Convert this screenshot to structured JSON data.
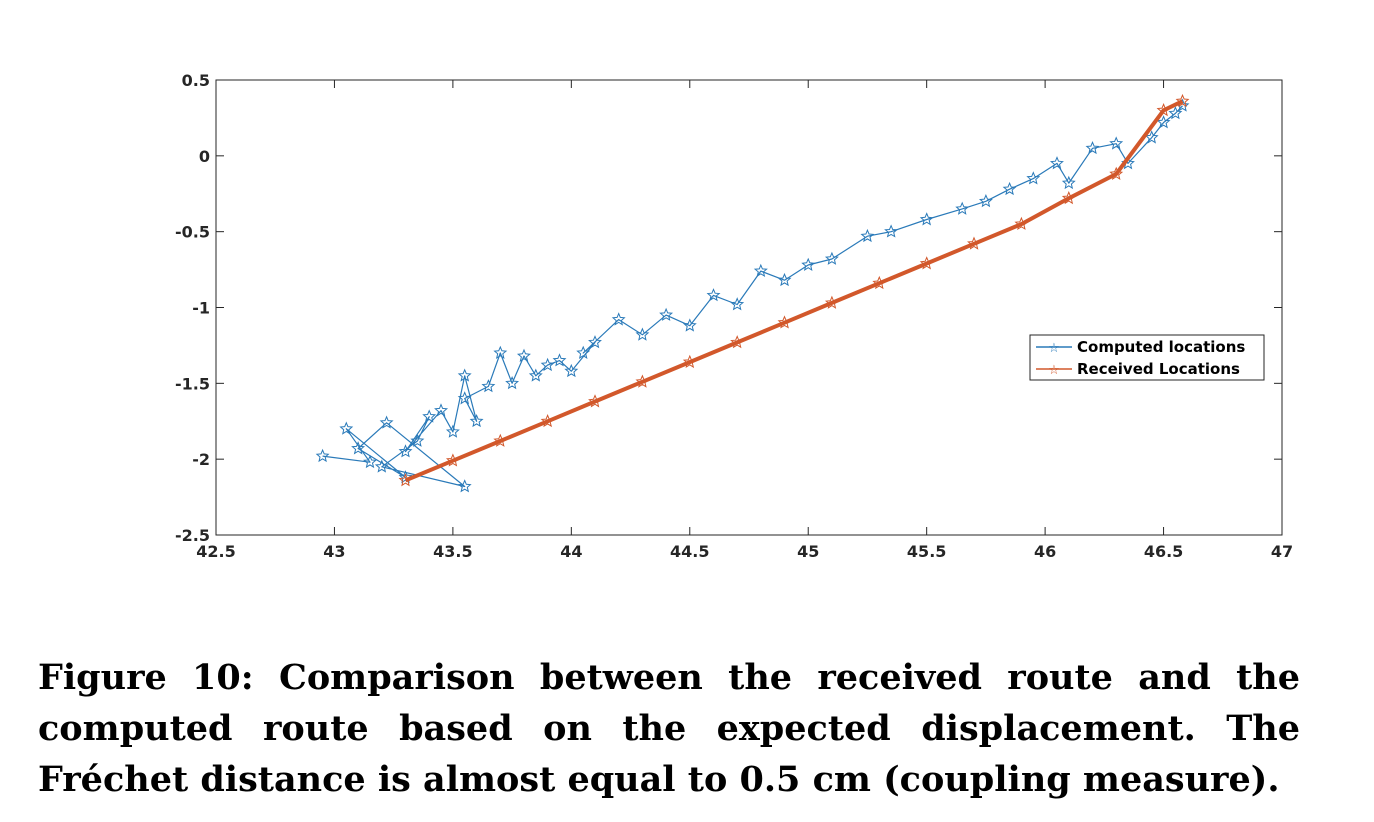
{
  "chart_data": {
    "type": "line",
    "title": "",
    "xlabel": "",
    "ylabel": "",
    "xlim": [
      42.5,
      47
    ],
    "ylim": [
      -2.5,
      0.5
    ],
    "x_ticks": [
      "42.5",
      "43",
      "43.5",
      "44",
      "44.5",
      "45",
      "45.5",
      "46",
      "46.5",
      "47"
    ],
    "y_ticks": [
      "0.5",
      "0",
      "-0.5",
      "-1",
      "-1.5",
      "-2",
      "-2.5"
    ],
    "grid": false,
    "legend_position": "right",
    "series": [
      {
        "name": "Computed locations",
        "color": "#2a7ab9",
        "marker": "star",
        "x": [
          42.95,
          43.15,
          43.05,
          43.3,
          43.1,
          43.22,
          43.55,
          43.2,
          43.35,
          43.4,
          43.3,
          43.45,
          43.5,
          43.55,
          43.6,
          43.55,
          43.65,
          43.7,
          43.75,
          43.8,
          43.85,
          43.9,
          43.95,
          44.0,
          44.1,
          44.05,
          44.2,
          44.3,
          44.4,
          44.5,
          44.6,
          44.7,
          44.8,
          44.9,
          45.0,
          45.1,
          45.25,
          45.35,
          45.5,
          45.65,
          45.75,
          45.85,
          45.95,
          46.05,
          46.1,
          46.2,
          46.3,
          46.35,
          46.45,
          46.5,
          46.55,
          46.58
        ],
        "y": [
          -1.98,
          -2.02,
          -1.8,
          -2.12,
          -1.93,
          -1.76,
          -2.18,
          -2.05,
          -1.88,
          -1.72,
          -1.95,
          -1.68,
          -1.82,
          -1.45,
          -1.75,
          -1.6,
          -1.52,
          -1.3,
          -1.5,
          -1.32,
          -1.45,
          -1.38,
          -1.35,
          -1.42,
          -1.23,
          -1.3,
          -1.08,
          -1.18,
          -1.05,
          -1.12,
          -0.92,
          -0.98,
          -0.76,
          -0.82,
          -0.72,
          -0.68,
          -0.53,
          -0.5,
          -0.42,
          -0.35,
          -0.3,
          -0.22,
          -0.15,
          -0.05,
          -0.18,
          0.05,
          0.08,
          -0.05,
          0.12,
          0.22,
          0.28,
          0.33
        ]
      },
      {
        "name": "Received Locations",
        "color": "#d2582b",
        "marker": "star",
        "x": [
          43.3,
          43.5,
          43.7,
          43.9,
          44.1,
          44.3,
          44.5,
          44.7,
          44.9,
          45.1,
          45.3,
          45.5,
          45.7,
          45.9,
          46.1,
          46.3,
          46.5,
          46.58
        ],
        "y": [
          -2.14,
          -2.01,
          -1.88,
          -1.75,
          -1.62,
          -1.49,
          -1.36,
          -1.23,
          -1.1,
          -0.97,
          -0.84,
          -0.71,
          -0.58,
          -0.45,
          -0.28,
          -0.12,
          0.3,
          0.36
        ]
      }
    ]
  },
  "caption": "Figure 10: Comparison between the received route and the computed route based on the expected displacement. The Fréchet distance is almost equal to 0.5 cm (coupling measure)."
}
